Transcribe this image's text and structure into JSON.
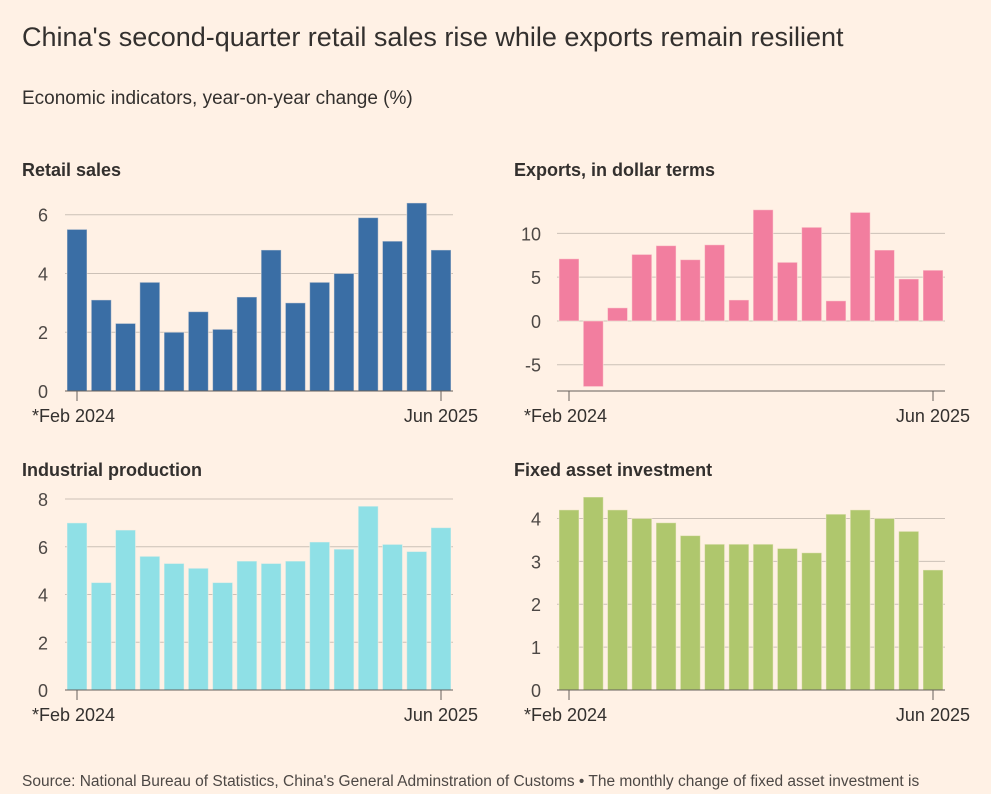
{
  "title": "China's second-quarter retail sales rise while exports remain resilient",
  "subtitle": "Economic indicators, year-on-year change (%)",
  "source": "Source: National Bureau of Statistics, China's General Adminstration of Customs • The monthly change of fixed asset investment is",
  "chart_data": [
    {
      "type": "bar",
      "title": "Retail sales",
      "color": "#3a6ea5",
      "x_tick_labels": [
        "*Feb 2024",
        "Jun 2025"
      ],
      "y_ticks": [
        0,
        2,
        4,
        6
      ],
      "ylim": [
        0,
        6.5
      ],
      "grid": true,
      "values": [
        5.5,
        3.1,
        2.3,
        3.7,
        2.0,
        2.7,
        2.1,
        3.2,
        4.8,
        3.0,
        3.7,
        4.0,
        5.9,
        5.1,
        6.4,
        4.8
      ]
    },
    {
      "type": "bar",
      "title": "Exports, in dollar terms",
      "color": "#f27e9f",
      "x_tick_labels": [
        "*Feb 2024",
        "Jun 2025"
      ],
      "y_ticks": [
        -5,
        0,
        5,
        10
      ],
      "ylim": [
        -8,
        12.9
      ],
      "grid": true,
      "values": [
        7.1,
        -7.5,
        1.5,
        7.6,
        8.6,
        7.0,
        8.7,
        2.4,
        12.7,
        6.7,
        10.7,
        2.3,
        12.4,
        8.1,
        4.8,
        5.8
      ]
    },
    {
      "type": "bar",
      "title": "Industrial production",
      "color": "#8fe0e6",
      "x_tick_labels": [
        "*Feb 2024",
        "Jun 2025"
      ],
      "y_ticks": [
        0,
        2,
        4,
        6,
        8
      ],
      "ylim": [
        0,
        8
      ],
      "grid": true,
      "values": [
        7.0,
        4.5,
        6.7,
        5.6,
        5.3,
        5.1,
        4.5,
        5.4,
        5.3,
        5.4,
        6.2,
        5.9,
        7.7,
        6.1,
        5.8,
        6.8
      ]
    },
    {
      "type": "bar",
      "title": "Fixed asset investment",
      "color": "#afc76d",
      "x_tick_labels": [
        "*Feb 2024",
        "Jun 2025"
      ],
      "y_ticks": [
        0,
        1,
        2,
        3,
        4
      ],
      "ylim": [
        0,
        4.5
      ],
      "grid": true,
      "values": [
        4.2,
        4.5,
        4.2,
        4.0,
        3.9,
        3.6,
        3.4,
        3.4,
        3.4,
        3.3,
        3.2,
        4.1,
        4.2,
        4.0,
        3.7,
        2.8
      ]
    }
  ]
}
